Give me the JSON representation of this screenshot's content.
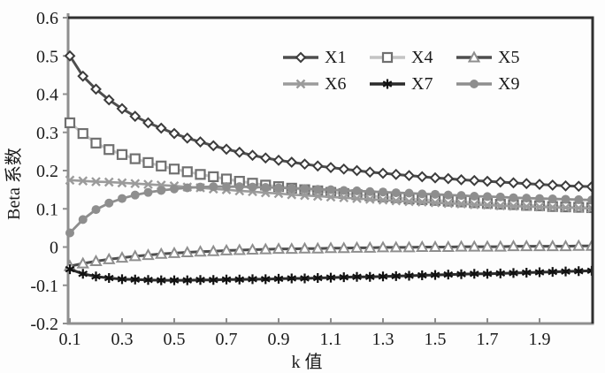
{
  "figure": {
    "title": "",
    "y_axis_title": "Beta 系数",
    "x_axis_title": "k 值"
  },
  "chart_data": {
    "type": "line",
    "title": "",
    "xlabel": "k 值",
    "ylabel": "Beta 系数",
    "xlim": [
      0.09,
      2.11
    ],
    "ylim": [
      -0.2,
      0.6
    ],
    "grid": false,
    "legend_position": "inside-top-right",
    "x_tick_values": [
      0.1,
      0.3,
      0.5,
      0.7,
      0.9,
      1.1,
      1.3,
      1.5,
      1.7,
      1.9
    ],
    "x_tick_labels": [
      "0.1",
      "0.3",
      "0.5",
      "0.7",
      "0.9",
      "1.1",
      "1.3",
      "1.5",
      "1.7",
      "1.9"
    ],
    "y_tick_values": [
      0.6,
      0.5,
      0.4,
      0.3,
      0.2,
      0.1,
      0,
      -0.1,
      -0.2
    ],
    "y_tick_labels": [
      "0.6",
      "0.5",
      "0.4",
      "0.3",
      "0.2",
      "0.1",
      "0",
      "-0.1",
      "-0.2"
    ],
    "x": [
      0.1,
      0.15,
      0.2,
      0.25,
      0.3,
      0.35,
      0.4,
      0.45,
      0.5,
      0.55,
      0.6,
      0.65,
      0.7,
      0.75,
      0.8,
      0.85,
      0.9,
      0.95,
      1.0,
      1.05,
      1.1,
      1.15,
      1.2,
      1.25,
      1.3,
      1.35,
      1.4,
      1.45,
      1.5,
      1.55,
      1.6,
      1.65,
      1.7,
      1.75,
      1.8,
      1.85,
      1.9,
      1.95,
      2.0,
      2.05,
      2.1
    ],
    "series": [
      {
        "name": "X1",
        "marker": "diamond",
        "line_color": "#4e4e4e",
        "marker_color": "#3c3c3c",
        "line_width": 3,
        "values": [
          0.5,
          0.447,
          0.413,
          0.385,
          0.362,
          0.342,
          0.325,
          0.311,
          0.297,
          0.285,
          0.275,
          0.265,
          0.256,
          0.248,
          0.24,
          0.233,
          0.227,
          0.222,
          0.217,
          0.212,
          0.208,
          0.204,
          0.2,
          0.196,
          0.193,
          0.19,
          0.187,
          0.184,
          0.181,
          0.179,
          0.176,
          0.174,
          0.172,
          0.17,
          0.168,
          0.166,
          0.164,
          0.162,
          0.16,
          0.159,
          0.158
        ]
      },
      {
        "name": "X4",
        "marker": "square",
        "line_color": "#c4c4c4",
        "marker_color": "#707070",
        "line_width": 3,
        "values": [
          0.325,
          0.297,
          0.272,
          0.255,
          0.242,
          0.231,
          0.221,
          0.212,
          0.204,
          0.197,
          0.19,
          0.184,
          0.178,
          0.172,
          0.167,
          0.162,
          0.158,
          0.154,
          0.15,
          0.147,
          0.143,
          0.14,
          0.137,
          0.134,
          0.131,
          0.129,
          0.126,
          0.124,
          0.122,
          0.12,
          0.118,
          0.116,
          0.114,
          0.112,
          0.111,
          0.109,
          0.108,
          0.106,
          0.105,
          0.104,
          0.103
        ]
      },
      {
        "name": "X5",
        "marker": "triangle",
        "line_color": "#4e4e4e",
        "marker_color": "#8e8e8e",
        "line_width": 3,
        "values": [
          -0.05,
          -0.043,
          -0.037,
          -0.032,
          -0.028,
          -0.024,
          -0.021,
          -0.018,
          -0.016,
          -0.014,
          -0.012,
          -0.011,
          -0.009,
          -0.008,
          -0.007,
          -0.006,
          -0.005,
          -0.005,
          -0.004,
          -0.004,
          -0.003,
          -0.003,
          -0.002,
          -0.002,
          -0.001,
          -0.001,
          -0.001,
          0.0,
          0.0,
          0.0,
          0.001,
          0.001,
          0.001,
          0.001,
          0.002,
          0.002,
          0.002,
          0.002,
          0.002,
          0.003,
          0.003
        ]
      },
      {
        "name": "X6",
        "marker": "x",
        "line_color": "#9b9b9b",
        "marker_color": "#9b9b9b",
        "line_width": 2.6,
        "values": [
          0.175,
          0.173,
          0.171,
          0.17,
          0.168,
          0.166,
          0.164,
          0.162,
          0.16,
          0.157,
          0.155,
          0.152,
          0.15,
          0.147,
          0.145,
          0.142,
          0.14,
          0.137,
          0.135,
          0.133,
          0.131,
          0.129,
          0.127,
          0.125,
          0.123,
          0.121,
          0.119,
          0.118,
          0.116,
          0.114,
          0.113,
          0.111,
          0.11,
          0.108,
          0.107,
          0.106,
          0.105,
          0.104,
          0.103,
          0.102,
          0.101
        ]
      },
      {
        "name": "X7",
        "marker": "asterisk",
        "line_color": "#2a2a2a",
        "marker_color": "#111111",
        "line_width": 3,
        "values": [
          -0.058,
          -0.07,
          -0.077,
          -0.081,
          -0.084,
          -0.085,
          -0.086,
          -0.087,
          -0.087,
          -0.087,
          -0.086,
          -0.086,
          -0.085,
          -0.085,
          -0.084,
          -0.084,
          -0.083,
          -0.082,
          -0.082,
          -0.081,
          -0.08,
          -0.079,
          -0.078,
          -0.078,
          -0.077,
          -0.076,
          -0.075,
          -0.074,
          -0.073,
          -0.072,
          -0.071,
          -0.07,
          -0.07,
          -0.069,
          -0.068,
          -0.067,
          -0.066,
          -0.065,
          -0.064,
          -0.063,
          -0.062
        ]
      },
      {
        "name": "X9",
        "marker": "circle",
        "line_color": "#8e8e8e",
        "marker_color": "#8e8e8e",
        "line_width": 2.8,
        "values": [
          0.037,
          0.072,
          0.098,
          0.115,
          0.127,
          0.136,
          0.143,
          0.148,
          0.152,
          0.155,
          0.157,
          0.158,
          0.158,
          0.158,
          0.157,
          0.156,
          0.155,
          0.154,
          0.153,
          0.151,
          0.15,
          0.148,
          0.147,
          0.145,
          0.144,
          0.142,
          0.141,
          0.139,
          0.138,
          0.136,
          0.135,
          0.133,
          0.132,
          0.131,
          0.129,
          0.128,
          0.127,
          0.126,
          0.125,
          0.124,
          0.123
        ]
      }
    ]
  },
  "colors": {
    "axis_gray": "#8f8f8f",
    "frame_dark": "#303030",
    "text": "#1b1b1b",
    "plot_background": "#fdfdfd"
  }
}
